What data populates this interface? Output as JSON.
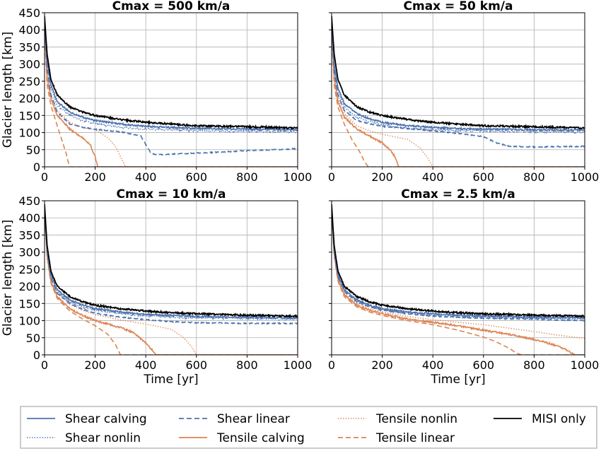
{
  "chart_data": [
    {
      "type": "line",
      "title": "Cmax = 500 km/a",
      "xlabel": "",
      "ylabel": "Glacier length [km]",
      "xlim": [
        0,
        1000
      ],
      "ylim": [
        0,
        450
      ],
      "xticks": [
        "0",
        "200",
        "400",
        "600",
        "800",
        "1000"
      ],
      "yticks": [
        "0",
        "50",
        "100",
        "150",
        "200",
        "250",
        "300",
        "350",
        "400",
        "450"
      ],
      "grid": true,
      "series": [
        {
          "key": "misi",
          "x": [
            0,
            10,
            25,
            50,
            100,
            150,
            200,
            300,
            400,
            500,
            600,
            800,
            1000
          ],
          "y": [
            440,
            330,
            255,
            210,
            175,
            160,
            150,
            138,
            130,
            125,
            120,
            117,
            113
          ]
        },
        {
          "key": "shear_calving",
          "x": [
            0,
            10,
            25,
            50,
            100,
            150,
            200,
            300,
            400,
            500,
            600,
            800,
            1000
          ],
          "y": [
            430,
            310,
            240,
            190,
            160,
            145,
            135,
            125,
            118,
            115,
            112,
            110,
            108
          ]
        },
        {
          "key": "shear_nonlin",
          "x": [
            0,
            10,
            25,
            50,
            100,
            150,
            200,
            300,
            400,
            500,
            600,
            800,
            1000
          ],
          "y": [
            425,
            300,
            230,
            180,
            150,
            135,
            125,
            115,
            110,
            108,
            106,
            104,
            102
          ]
        },
        {
          "key": "shear_linear",
          "x": [
            0,
            10,
            25,
            50,
            100,
            150,
            200,
            300,
            380,
            420,
            440,
            500,
            600,
            800,
            1000
          ],
          "y": [
            420,
            290,
            210,
            160,
            125,
            115,
            110,
            102,
            90,
            40,
            35,
            37,
            40,
            47,
            53
          ]
        },
        {
          "key": "tensile_calving",
          "x": [
            0,
            10,
            25,
            50,
            100,
            150,
            180,
            200,
            210,
            1000
          ],
          "y": [
            410,
            260,
            200,
            150,
            110,
            85,
            65,
            30,
            0,
            0
          ]
        },
        {
          "key": "tensile_nonlin",
          "x": [
            0,
            10,
            25,
            50,
            100,
            150,
            200,
            250,
            280,
            300,
            320,
            1000
          ],
          "y": [
            415,
            280,
            215,
            165,
            130,
            115,
            108,
            85,
            60,
            30,
            0,
            0
          ]
        },
        {
          "key": "tensile_linear",
          "x": [
            0,
            10,
            25,
            50,
            70,
            85,
            95,
            100,
            1000
          ],
          "y": [
            400,
            240,
            180,
            120,
            75,
            40,
            10,
            0,
            0
          ]
        }
      ]
    },
    {
      "type": "line",
      "title": "Cmax = 50 km/a",
      "xlabel": "",
      "ylabel": "",
      "xlim": [
        0,
        1000
      ],
      "ylim": [
        0,
        450
      ],
      "xticks": [
        "0",
        "200",
        "400",
        "600",
        "800",
        "1000"
      ],
      "yticks": [],
      "grid": true,
      "series": [
        {
          "key": "misi",
          "x": [
            0,
            10,
            25,
            50,
            100,
            150,
            200,
            300,
            400,
            500,
            600,
            800,
            1000
          ],
          "y": [
            440,
            330,
            255,
            210,
            175,
            160,
            150,
            138,
            130,
            125,
            120,
            117,
            113
          ]
        },
        {
          "key": "shear_calving",
          "x": [
            0,
            10,
            25,
            50,
            100,
            150,
            200,
            300,
            400,
            500,
            600,
            800,
            1000
          ],
          "y": [
            430,
            300,
            230,
            185,
            155,
            140,
            130,
            120,
            115,
            112,
            110,
            108,
            107
          ]
        },
        {
          "key": "shear_nonlin",
          "x": [
            0,
            10,
            25,
            50,
            100,
            150,
            200,
            300,
            400,
            500,
            600,
            800,
            1000
          ],
          "y": [
            425,
            290,
            220,
            175,
            145,
            132,
            122,
            113,
            108,
            106,
            105,
            103,
            101
          ]
        },
        {
          "key": "shear_linear",
          "x": [
            0,
            10,
            25,
            50,
            100,
            150,
            200,
            300,
            400,
            500,
            600,
            650,
            700,
            800,
            1000
          ],
          "y": [
            420,
            280,
            210,
            165,
            135,
            125,
            118,
            112,
            105,
            98,
            88,
            70,
            60,
            58,
            60
          ]
        },
        {
          "key": "tensile_calving",
          "x": [
            0,
            10,
            25,
            50,
            100,
            150,
            200,
            230,
            250,
            265,
            1000
          ],
          "y": [
            410,
            260,
            190,
            145,
            110,
            90,
            70,
            50,
            30,
            0,
            0
          ]
        },
        {
          "key": "tensile_nonlin",
          "x": [
            0,
            10,
            25,
            50,
            100,
            150,
            200,
            300,
            350,
            380,
            400,
            1000
          ],
          "y": [
            415,
            270,
            200,
            155,
            120,
            105,
            95,
            80,
            55,
            25,
            0,
            0
          ]
        },
        {
          "key": "tensile_linear",
          "x": [
            0,
            10,
            25,
            50,
            80,
            110,
            130,
            145,
            1000
          ],
          "y": [
            400,
            240,
            175,
            125,
            80,
            45,
            15,
            0,
            0
          ]
        }
      ]
    },
    {
      "type": "line",
      "title": "Cmax = 10 km/a",
      "xlabel": "Time [yr]",
      "ylabel": "Glacier length [km]",
      "xlim": [
        0,
        1000
      ],
      "ylim": [
        0,
        450
      ],
      "xticks": [
        "0",
        "200",
        "400",
        "600",
        "800",
        "1000"
      ],
      "yticks": [
        "0",
        "50",
        "100",
        "150",
        "200",
        "250",
        "300",
        "350",
        "400",
        "450"
      ],
      "grid": true,
      "series": [
        {
          "key": "misi",
          "x": [
            0,
            10,
            25,
            50,
            100,
            150,
            200,
            300,
            400,
            500,
            600,
            800,
            1000
          ],
          "y": [
            440,
            320,
            245,
            200,
            170,
            155,
            145,
            135,
            128,
            123,
            120,
            116,
            113
          ]
        },
        {
          "key": "shear_calving",
          "x": [
            0,
            10,
            25,
            50,
            100,
            150,
            200,
            300,
            400,
            500,
            600,
            800,
            1000
          ],
          "y": [
            435,
            310,
            235,
            190,
            160,
            145,
            135,
            125,
            118,
            115,
            112,
            110,
            108
          ]
        },
        {
          "key": "shear_nonlin",
          "x": [
            0,
            10,
            25,
            50,
            100,
            150,
            200,
            300,
            400,
            500,
            600,
            800,
            1000
          ],
          "y": [
            430,
            305,
            230,
            185,
            155,
            140,
            130,
            120,
            114,
            110,
            108,
            106,
            103
          ]
        },
        {
          "key": "shear_linear",
          "x": [
            0,
            10,
            25,
            50,
            100,
            150,
            200,
            300,
            400,
            500,
            600,
            800,
            1000
          ],
          "y": [
            428,
            300,
            225,
            180,
            150,
            133,
            122,
            110,
            103,
            97,
            94,
            92,
            92
          ]
        },
        {
          "key": "tensile_calving",
          "x": [
            0,
            10,
            25,
            50,
            100,
            150,
            200,
            300,
            350,
            400,
            430,
            440,
            1000
          ],
          "y": [
            420,
            290,
            215,
            170,
            135,
            115,
            100,
            80,
            65,
            35,
            10,
            0,
            0
          ]
        },
        {
          "key": "tensile_nonlin",
          "x": [
            0,
            10,
            25,
            50,
            100,
            150,
            200,
            300,
            400,
            500,
            550,
            580,
            600,
            1000
          ],
          "y": [
            425,
            300,
            225,
            180,
            148,
            130,
            118,
            102,
            90,
            75,
            50,
            25,
            0,
            0
          ]
        },
        {
          "key": "tensile_linear",
          "x": [
            0,
            10,
            25,
            50,
            100,
            150,
            200,
            250,
            280,
            300,
            1000
          ],
          "y": [
            418,
            285,
            210,
            165,
            128,
            105,
            85,
            60,
            30,
            0,
            0
          ]
        }
      ]
    },
    {
      "type": "line",
      "title": "Cmax = 2.5 km/a",
      "xlabel": "Time [yr]",
      "ylabel": "",
      "xlim": [
        0,
        1000
      ],
      "ylim": [
        0,
        450
      ],
      "xticks": [
        "0",
        "200",
        "400",
        "600",
        "800",
        "1000"
      ],
      "yticks": [],
      "grid": true,
      "series": [
        {
          "key": "misi",
          "x": [
            0,
            10,
            25,
            50,
            100,
            150,
            200,
            300,
            400,
            500,
            600,
            800,
            1000
          ],
          "y": [
            440,
            320,
            245,
            200,
            170,
            155,
            145,
            135,
            128,
            123,
            120,
            116,
            113
          ]
        },
        {
          "key": "shear_calving",
          "x": [
            0,
            10,
            25,
            50,
            100,
            150,
            200,
            300,
            400,
            500,
            600,
            800,
            1000
          ],
          "y": [
            435,
            310,
            235,
            190,
            160,
            145,
            135,
            125,
            120,
            116,
            113,
            110,
            108
          ]
        },
        {
          "key": "shear_nonlin",
          "x": [
            0,
            10,
            25,
            50,
            100,
            150,
            200,
            300,
            400,
            500,
            600,
            800,
            1000
          ],
          "y": [
            432,
            305,
            232,
            188,
            157,
            142,
            132,
            122,
            116,
            112,
            110,
            107,
            105
          ]
        },
        {
          "key": "shear_linear",
          "x": [
            0,
            10,
            25,
            50,
            100,
            150,
            200,
            300,
            400,
            500,
            600,
            800,
            1000
          ],
          "y": [
            430,
            302,
            228,
            185,
            155,
            140,
            130,
            120,
            113,
            110,
            107,
            104,
            100
          ]
        },
        {
          "key": "tensile_calving",
          "x": [
            0,
            10,
            25,
            50,
            100,
            150,
            200,
            300,
            400,
            500,
            600,
            700,
            800,
            900,
            950,
            960,
            1000
          ],
          "y": [
            425,
            295,
            220,
            175,
            145,
            130,
            120,
            105,
            95,
            85,
            72,
            60,
            45,
            25,
            5,
            0,
            0
          ]
        },
        {
          "key": "tensile_nonlin",
          "x": [
            0,
            10,
            25,
            50,
            100,
            150,
            200,
            300,
            400,
            500,
            600,
            700,
            800,
            900,
            1000
          ],
          "y": [
            428,
            300,
            225,
            180,
            150,
            135,
            125,
            112,
            103,
            95,
            88,
            78,
            68,
            57,
            48
          ]
        },
        {
          "key": "tensile_linear",
          "x": [
            0,
            10,
            25,
            50,
            100,
            150,
            200,
            300,
            400,
            500,
            600,
            650,
            700,
            730,
            750,
            1000
          ],
          "y": [
            422,
            290,
            215,
            170,
            140,
            125,
            115,
            100,
            88,
            72,
            52,
            38,
            20,
            5,
            0,
            0
          ]
        }
      ]
    }
  ],
  "legend": {
    "placement": "bottom",
    "entries": [
      {
        "key": "shear_calving",
        "label": "Shear calving"
      },
      {
        "key": "shear_linear",
        "label": "Shear linear"
      },
      {
        "key": "tensile_nonlin",
        "label": "Tensile nonlin"
      },
      {
        "key": "misi",
        "label": "MISI only"
      },
      {
        "key": "shear_nonlin",
        "label": "Shear nonlin"
      },
      {
        "key": "tensile_calving",
        "label": "Tensile calving"
      },
      {
        "key": "tensile_linear",
        "label": "Tensile linear"
      }
    ]
  },
  "styles": {
    "shear_calving": {
      "color": "#4c72b0",
      "dash": "solid"
    },
    "shear_nonlin": {
      "color": "#4c72b0",
      "dash": "dotted"
    },
    "shear_linear": {
      "color": "#4c72b0",
      "dash": "dashed"
    },
    "tensile_calving": {
      "color": "#dd8452",
      "dash": "solid"
    },
    "tensile_nonlin": {
      "color": "#dd8452",
      "dash": "dotted"
    },
    "tensile_linear": {
      "color": "#dd8452",
      "dash": "dashed"
    },
    "misi": {
      "color": "#000000",
      "dash": "solid"
    }
  }
}
